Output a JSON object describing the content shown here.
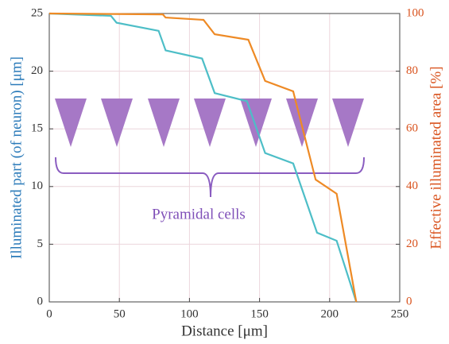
{
  "chart_data": {
    "type": "line",
    "xlabel": "Distance [μm]",
    "ylabel": "Illuminated part (of neuron) [μm]",
    "y2label": "Effective illuminated area [%]",
    "annotation": "Pyramidal cells",
    "xlim": [
      0,
      250
    ],
    "xticks": [
      0,
      50,
      100,
      150,
      200,
      250
    ],
    "ylim": [
      0,
      25
    ],
    "yticks": [
      0,
      5,
      10,
      15,
      20,
      25
    ],
    "y2lim": [
      0,
      100
    ],
    "y2ticks": [
      0,
      20,
      40,
      60,
      80,
      100
    ],
    "grid": true,
    "ylabel_color": "#2a7ab9",
    "y2label_color": "#d9531e",
    "series": [
      {
        "color": "#4dbec7",
        "axis": "y",
        "x": [
          0,
          44,
          48,
          78,
          83,
          109,
          118,
          141,
          154,
          174,
          191,
          205,
          219
        ],
        "values": [
          25,
          24.8,
          24.2,
          23.5,
          21.8,
          21.1,
          18.1,
          17.4,
          12.9,
          12.0,
          6.0,
          5.3,
          0
        ]
      },
      {
        "color": "#ee8a25",
        "axis": "y2",
        "x": [
          0,
          81,
          83,
          110,
          118,
          142,
          154,
          174,
          190,
          205,
          219
        ],
        "values": [
          100,
          99.7,
          98.6,
          97.8,
          92.8,
          90.9,
          76.6,
          73,
          42.4,
          37.5,
          0
        ]
      }
    ]
  }
}
